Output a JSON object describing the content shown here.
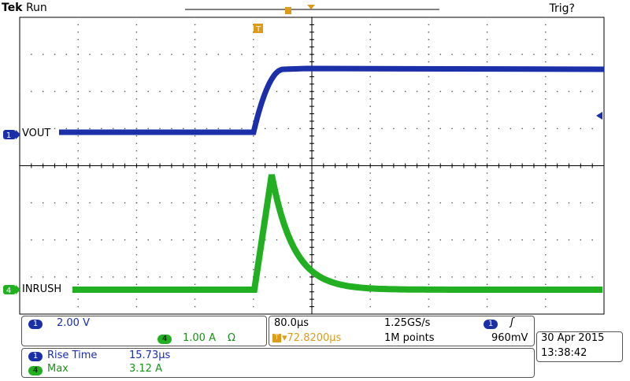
{
  "header": {
    "brand": "Tek",
    "mode": "Run",
    "trigger_status": "Trig?"
  },
  "markers": {
    "trigger_pos": "T"
  },
  "channels": [
    {
      "id": "1",
      "label": "VOUT",
      "color": "#1a2fa8"
    },
    {
      "id": "4",
      "label": "INRUSH",
      "color": "#22b022"
    }
  ],
  "ch_panel": {
    "ch1_scale": "2.00 V",
    "ch4_scale": "1.00 A",
    "ch4_symbol": "Ω"
  },
  "timebase": {
    "time_div": "80.0µs",
    "sample_rate": "1.25GS/s",
    "delay": "▾72.8200µs",
    "record": "1M points",
    "trigger_level": "960mV",
    "trigger_slope": "ʃ"
  },
  "datetime": {
    "date": "30 Apr  2015",
    "time": "13:38:42"
  },
  "measurements": [
    {
      "ch": "1",
      "name": "Rise Time",
      "value": "15.73µs"
    },
    {
      "ch": "4",
      "name": "Max",
      "value": "3.12 A"
    }
  ],
  "colors": {
    "ch1": "#1a2fa8",
    "ch4": "#22b022",
    "trigger": "#e09a1a",
    "grid": "#000000"
  }
}
